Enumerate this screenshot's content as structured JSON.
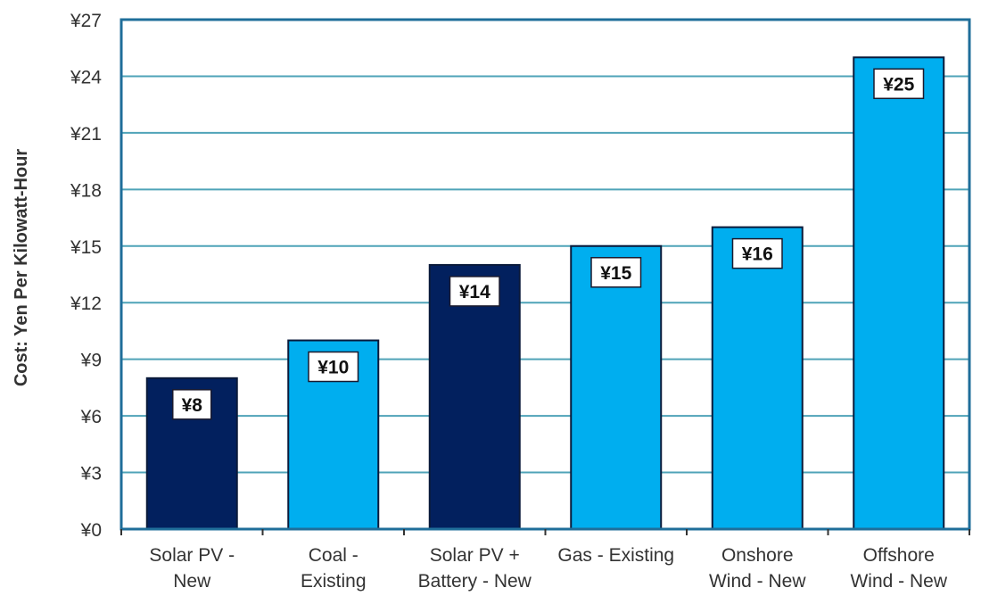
{
  "chart_data": {
    "type": "bar",
    "title": "",
    "xlabel": "",
    "ylabel": "Cost: Yen Per Kilowatt-Hour",
    "ylim": [
      0,
      27
    ],
    "yticks": [
      0,
      3,
      6,
      9,
      12,
      15,
      18,
      21,
      24,
      27
    ],
    "ytick_labels": [
      "¥0",
      "¥3",
      "¥6",
      "¥9",
      "¥12",
      "¥15",
      "¥18",
      "¥21",
      "¥24",
      "¥27"
    ],
    "grid": true,
    "legend": "none",
    "categories": [
      [
        "Solar PV -",
        "New"
      ],
      [
        "Coal -",
        "Existing"
      ],
      [
        "Solar PV +",
        "Battery - New"
      ],
      [
        "Gas - Existing"
      ],
      [
        "Onshore",
        "Wind - New"
      ],
      [
        "Offshore",
        "Wind - New"
      ]
    ],
    "values": [
      8,
      10,
      14,
      15,
      16,
      25
    ],
    "data_labels": [
      "¥8",
      "¥10",
      "¥14",
      "¥15",
      "¥16",
      "¥25"
    ],
    "bar_colors": [
      "#02205e",
      "#00aeef",
      "#02205e",
      "#00aeef",
      "#00aeef",
      "#00aeef"
    ],
    "colors": {
      "grid": "#4fa3b8",
      "frame": "#1f6e9a",
      "bar_outline": "#0a1a3a"
    }
  }
}
